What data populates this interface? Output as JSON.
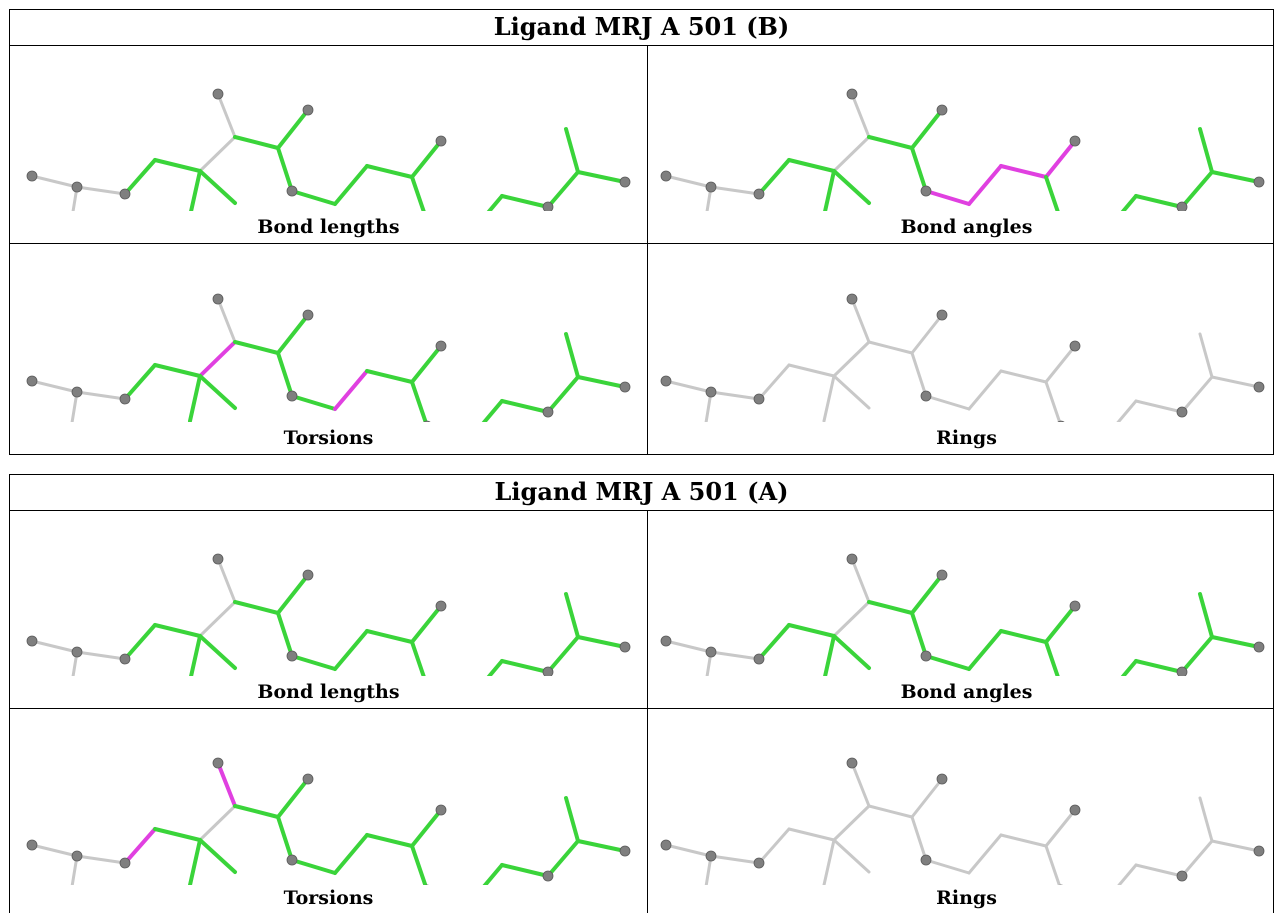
{
  "tables": [
    {
      "title": "Ligand MRJ A 501 (B)",
      "panels": [
        {
          "caption": "Bond lengths",
          "highlight": "green"
        },
        {
          "caption": "Bond angles",
          "highlight": "magenta-chain"
        },
        {
          "caption": "Torsions",
          "highlight": "magenta-torsions-b"
        },
        {
          "caption": "Rings",
          "highlight": "none"
        }
      ]
    },
    {
      "title": "Ligand MRJ A 501 (A)",
      "panels": [
        {
          "caption": "Bond lengths",
          "highlight": "green"
        },
        {
          "caption": "Bond angles",
          "highlight": "green"
        },
        {
          "caption": "Torsions",
          "highlight": "magenta-torsions-a"
        },
        {
          "caption": "Rings",
          "highlight": "none"
        }
      ]
    }
  ],
  "colors": {
    "good": "#3ad43a",
    "outlier": "#e040e0",
    "neutral": "#c8c8c8",
    "atom": "#7f7f7f",
    "border": "#000000"
  }
}
